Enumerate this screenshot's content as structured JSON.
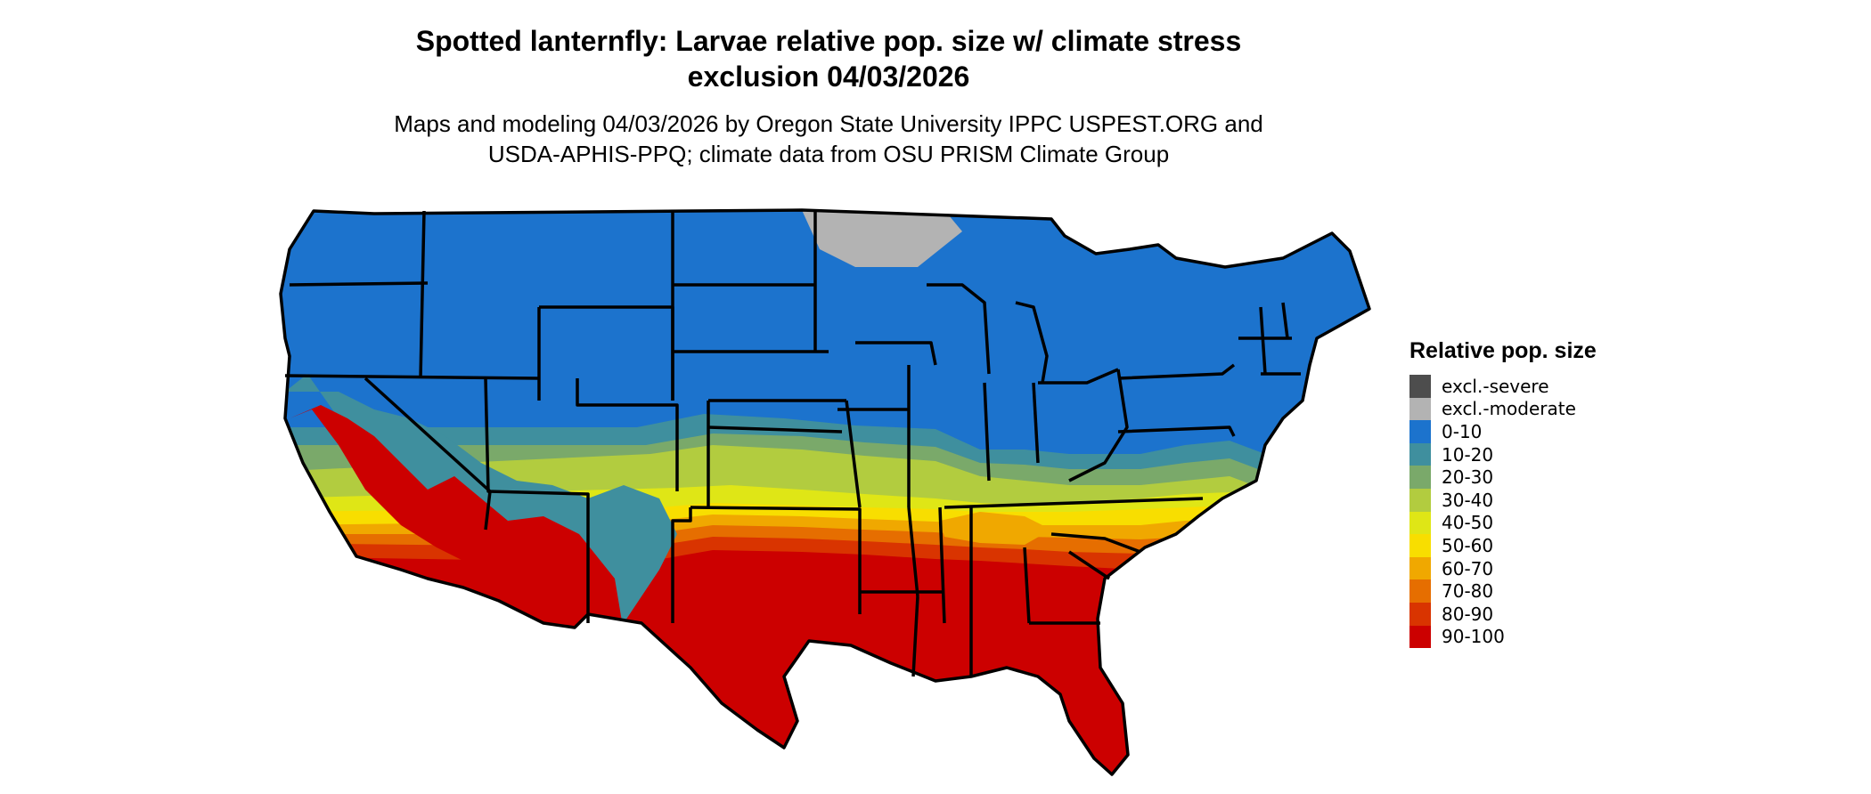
{
  "title_line1": "Spotted lanternfly: Larvae relative pop. size w/ climate stress",
  "title_line2": "exclusion 04/03/2026",
  "subtitle_line1": "Maps and modeling 04/03/2026 by Oregon State University IPPC USPEST.ORG and",
  "subtitle_line2": "USDA-APHIS-PPQ; climate data from OSU PRISM Climate Group",
  "legend": {
    "title": "Relative pop. size",
    "items": [
      {
        "label": "excl.-severe",
        "color": "#4d4d4d"
      },
      {
        "label": "excl.-moderate",
        "color": "#b3b3b3"
      },
      {
        "label": "0-10",
        "color": "#1c73cd"
      },
      {
        "label": "10-20",
        "color": "#3f8f9e"
      },
      {
        "label": "20-30",
        "color": "#7aa96a"
      },
      {
        "label": "30-40",
        "color": "#b2cc3f"
      },
      {
        "label": "40-50",
        "color": "#dfe616"
      },
      {
        "label": "50-60",
        "color": "#f8de00"
      },
      {
        "label": "60-70",
        "color": "#f0a800"
      },
      {
        "label": "70-80",
        "color": "#e66e00"
      },
      {
        "label": "80-90",
        "color": "#d93400"
      },
      {
        "label": "90-100",
        "color": "#cc0000"
      }
    ]
  }
}
